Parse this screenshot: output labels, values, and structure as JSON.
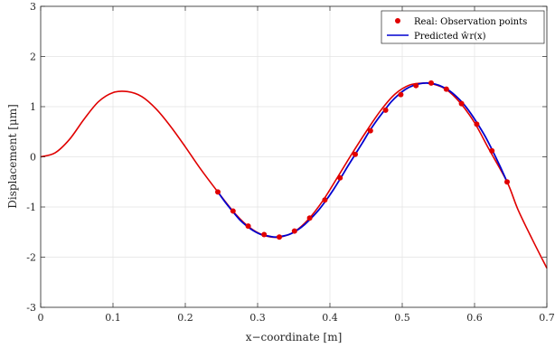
{
  "chart_data": {
    "type": "line",
    "title": "",
    "xlabel": "x−coordinate [m]",
    "ylabel": "Displacement [μm]",
    "xlim": [
      0,
      0.7
    ],
    "ylim": [
      -3,
      3
    ],
    "x_ticks": [
      0,
      0.1,
      0.2,
      0.3,
      0.4,
      0.5,
      0.6,
      0.7
    ],
    "x_tick_labels": [
      "0",
      "0.1",
      "0.2",
      "0.3",
      "0.4",
      "0.5",
      "0.6",
      "0.7"
    ],
    "y_ticks": [
      -3,
      -2,
      -1,
      0,
      1,
      2,
      3
    ],
    "y_tick_labels": [
      "-3",
      "-2",
      "-1",
      "0",
      "1",
      "2",
      "3"
    ],
    "grid": true,
    "legend_position": "top-right",
    "series": [
      {
        "name": "",
        "color": "#e00000",
        "style": "line",
        "x": [
          0,
          0.02,
          0.04,
          0.06,
          0.08,
          0.1,
          0.12,
          0.14,
          0.16,
          0.18,
          0.2,
          0.22,
          0.245,
          0.27,
          0.29,
          0.31,
          0.33,
          0.35,
          0.37,
          0.39,
          0.41,
          0.43,
          0.45,
          0.47,
          0.49,
          0.51,
          0.53,
          0.54,
          0.56,
          0.58,
          0.6,
          0.62,
          0.645,
          0.66,
          0.68,
          0.7
        ],
        "y": [
          0,
          0.08,
          0.35,
          0.75,
          1.1,
          1.28,
          1.3,
          1.2,
          0.95,
          0.6,
          0.2,
          -0.22,
          -0.7,
          -1.15,
          -1.42,
          -1.57,
          -1.6,
          -1.5,
          -1.25,
          -0.88,
          -0.42,
          0.05,
          0.5,
          0.92,
          1.25,
          1.43,
          1.47,
          1.46,
          1.35,
          1.08,
          0.68,
          0.15,
          -0.5,
          -1.05,
          -1.65,
          -2.22
        ]
      },
      {
        "name": "Predicted ŵr(x)",
        "color": "#0000d0",
        "style": "line",
        "x": [
          0.245,
          0.255,
          0.265,
          0.275,
          0.285,
          0.295,
          0.305,
          0.315,
          0.325,
          0.335,
          0.345,
          0.355,
          0.365,
          0.375,
          0.385,
          0.395,
          0.405,
          0.415,
          0.425,
          0.435,
          0.445,
          0.455,
          0.465,
          0.475,
          0.485,
          0.495,
          0.505,
          0.515,
          0.525,
          0.535,
          0.545,
          0.555,
          0.565,
          0.575,
          0.585,
          0.595,
          0.605,
          0.615,
          0.625,
          0.635,
          0.645
        ],
        "y": [
          -0.7,
          -0.9,
          -1.08,
          -1.25,
          -1.38,
          -1.48,
          -1.55,
          -1.58,
          -1.6,
          -1.58,
          -1.54,
          -1.46,
          -1.35,
          -1.21,
          -1.05,
          -0.86,
          -0.65,
          -0.42,
          -0.18,
          0.05,
          0.28,
          0.52,
          0.73,
          0.92,
          1.1,
          1.24,
          1.35,
          1.42,
          1.46,
          1.47,
          1.45,
          1.4,
          1.32,
          1.2,
          1.05,
          0.86,
          0.64,
          0.4,
          0.12,
          -0.18,
          -0.5
        ]
      },
      {
        "name": "Real: Observation points",
        "color": "#e00000",
        "style": "markers",
        "x": [
          0.245,
          0.266,
          0.287,
          0.309,
          0.33,
          0.351,
          0.372,
          0.393,
          0.414,
          0.435,
          0.456,
          0.477,
          0.498,
          0.519,
          0.54,
          0.561,
          0.582,
          0.603,
          0.624,
          0.645
        ],
        "y": [
          -0.7,
          -1.08,
          -1.38,
          -1.55,
          -1.6,
          -1.48,
          -1.22,
          -0.86,
          -0.42,
          0.05,
          0.52,
          0.93,
          1.24,
          1.42,
          1.47,
          1.35,
          1.06,
          0.65,
          0.12,
          -0.5
        ]
      }
    ]
  }
}
